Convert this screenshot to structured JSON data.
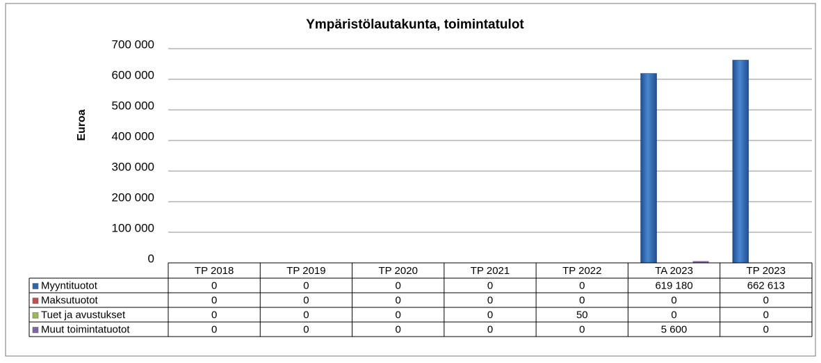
{
  "chart_data": {
    "type": "bar",
    "title": "Ympäristölautakunta, toimintatulot",
    "y_label": "Euroa",
    "categories": [
      "TP 2018",
      "TP 2019",
      "TP 2020",
      "TP 2021",
      "TP 2022",
      "TA 2023",
      "TP 2023"
    ],
    "series": [
      {
        "name": "Myyntituotot",
        "color": "#2f64a8",
        "values": [
          0,
          0,
          0,
          0,
          0,
          619180,
          662613
        ],
        "value_labels": [
          "0",
          "0",
          "0",
          "0",
          "0",
          "619 180",
          "662 613"
        ]
      },
      {
        "name": "Maksutuotot",
        "color": "#c0504d",
        "values": [
          0,
          0,
          0,
          0,
          0,
          0,
          0
        ]
      },
      {
        "name": "Tuet ja avustukset",
        "color": "#9bbb59",
        "values": [
          0,
          0,
          0,
          0,
          50,
          0,
          0
        ]
      },
      {
        "name": "Muut toimintatuotot",
        "color": "#8064a2",
        "values": [
          0,
          0,
          0,
          0,
          0,
          5600,
          0
        ],
        "value_labels": [
          "0",
          "0",
          "0",
          "0",
          "0",
          "5 600",
          "0"
        ]
      }
    ],
    "ylim": [
      0,
      700000
    ],
    "yticks": [
      0,
      {
        "value": 100000,
        "label": "100 000"
      },
      {
        "value": 200000,
        "label": "200 000"
      },
      {
        "value": 300000,
        "label": "300 000"
      },
      {
        "value": 400000,
        "label": "400 000"
      },
      {
        "value": 500000,
        "label": "500 000"
      },
      {
        "value": 600000,
        "label": "600 000"
      },
      {
        "value": 700000,
        "label": "700 000"
      }
    ],
    "grid": true
  }
}
